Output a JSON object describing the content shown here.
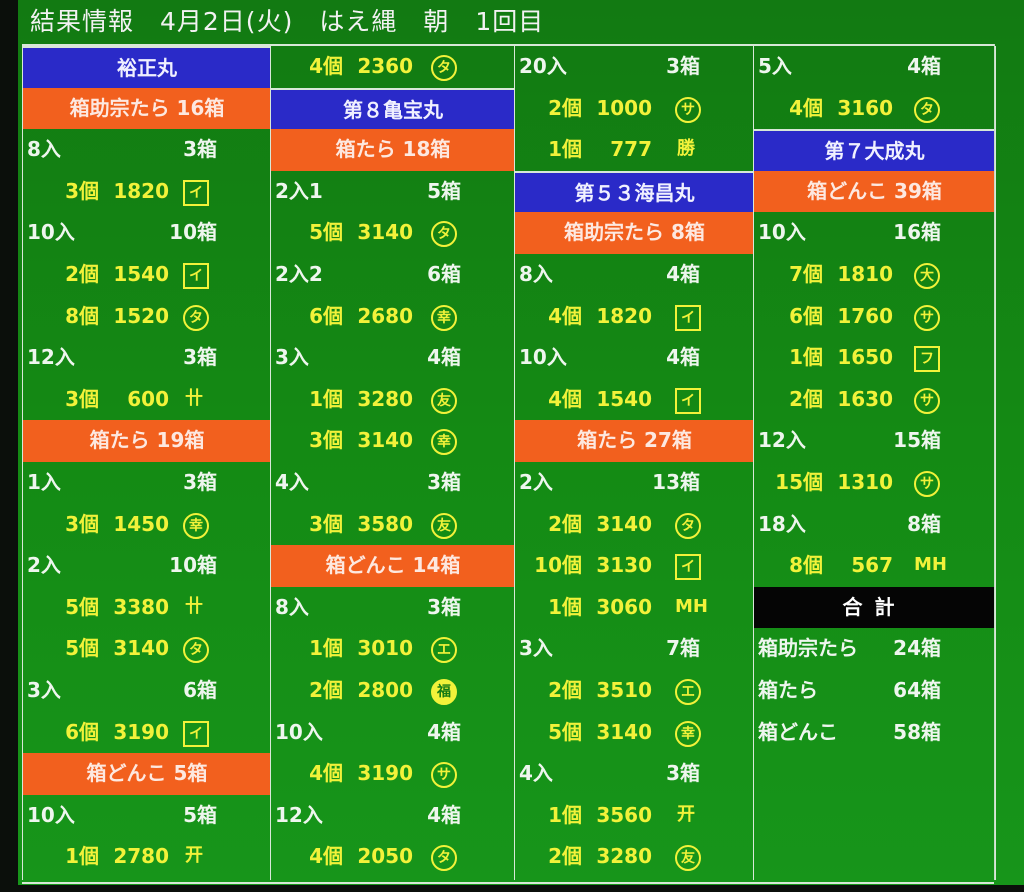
{
  "title": "結果情報　4月2日(火)　はえ縄　朝　1回目",
  "colors": {
    "background": "#148a14",
    "vessel_header": "#2a2ac8",
    "species_header": "#f2601e",
    "total_header": "#050505",
    "lot_text": "#f2f23a",
    "label_text": "#eef6ee"
  },
  "columns": [
    {
      "rows": [
        {
          "type": "header",
          "text": "裕正丸"
        },
        {
          "type": "section",
          "text": "箱助宗たら 16箱"
        },
        {
          "type": "size",
          "label": "8入",
          "boxes": "3箱"
        },
        {
          "type": "lot",
          "count": "3個",
          "price": "1820",
          "mark": "イ",
          "mark_style": "square"
        },
        {
          "type": "size",
          "label": "10入",
          "boxes": "10箱"
        },
        {
          "type": "lot",
          "count": "2個",
          "price": "1540",
          "mark": "イ",
          "mark_style": "square"
        },
        {
          "type": "lot",
          "count": "8個",
          "price": "1520",
          "mark": "タ",
          "mark_style": "circle"
        },
        {
          "type": "size",
          "label": "12入",
          "boxes": "3箱"
        },
        {
          "type": "lot",
          "count": "3個",
          "price": "600",
          "mark": "卄",
          "mark_style": "plain"
        },
        {
          "type": "section",
          "text": "箱たら 19箱"
        },
        {
          "type": "size",
          "label": "1入",
          "boxes": "3箱"
        },
        {
          "type": "lot",
          "count": "3個",
          "price": "1450",
          "mark": "幸",
          "mark_style": "circle"
        },
        {
          "type": "size",
          "label": "2入",
          "boxes": "10箱"
        },
        {
          "type": "lot",
          "count": "5個",
          "price": "3380",
          "mark": "卄",
          "mark_style": "plain"
        },
        {
          "type": "lot",
          "count": "5個",
          "price": "3140",
          "mark": "タ",
          "mark_style": "circle"
        },
        {
          "type": "size",
          "label": "3入",
          "boxes": "6箱"
        },
        {
          "type": "lot",
          "count": "6個",
          "price": "3190",
          "mark": "イ",
          "mark_style": "square"
        },
        {
          "type": "section",
          "text": "箱どんこ 5箱"
        },
        {
          "type": "size",
          "label": "10入",
          "boxes": "5箱"
        },
        {
          "type": "lot",
          "count": "1個",
          "price": "2780",
          "mark": "开",
          "mark_style": "plain"
        }
      ]
    },
    {
      "rows": [
        {
          "type": "lot",
          "count": "4個",
          "price": "2360",
          "mark": "タ",
          "mark_style": "circle"
        },
        {
          "type": "header",
          "text": "第８亀宝丸"
        },
        {
          "type": "section",
          "text": "箱たら 18箱"
        },
        {
          "type": "size",
          "label": "2入1",
          "boxes": "5箱"
        },
        {
          "type": "lot",
          "count": "5個",
          "price": "3140",
          "mark": "タ",
          "mark_style": "circle"
        },
        {
          "type": "size",
          "label": "2入2",
          "boxes": "6箱"
        },
        {
          "type": "lot",
          "count": "6個",
          "price": "2680",
          "mark": "幸",
          "mark_style": "circle"
        },
        {
          "type": "size",
          "label": "3入",
          "boxes": "4箱"
        },
        {
          "type": "lot",
          "count": "1個",
          "price": "3280",
          "mark": "友",
          "mark_style": "circle"
        },
        {
          "type": "lot",
          "count": "3個",
          "price": "3140",
          "mark": "幸",
          "mark_style": "circle"
        },
        {
          "type": "size",
          "label": "4入",
          "boxes": "3箱"
        },
        {
          "type": "lot",
          "count": "3個",
          "price": "3580",
          "mark": "友",
          "mark_style": "circle"
        },
        {
          "type": "section",
          "text": "箱どんこ 14箱"
        },
        {
          "type": "size",
          "label": "8入",
          "boxes": "3箱"
        },
        {
          "type": "lot",
          "count": "1個",
          "price": "3010",
          "mark": "エ",
          "mark_style": "circle"
        },
        {
          "type": "lot",
          "count": "2個",
          "price": "2800",
          "mark": "福",
          "mark_style": "filled"
        },
        {
          "type": "size",
          "label": "10入",
          "boxes": "4箱"
        },
        {
          "type": "lot",
          "count": "4個",
          "price": "3190",
          "mark": "サ",
          "mark_style": "circle"
        },
        {
          "type": "size",
          "label": "12入",
          "boxes": "4箱"
        },
        {
          "type": "lot",
          "count": "4個",
          "price": "2050",
          "mark": "タ",
          "mark_style": "circle"
        }
      ]
    },
    {
      "rows": [
        {
          "type": "size",
          "label": "20入",
          "boxes": "3箱"
        },
        {
          "type": "lot",
          "count": "2個",
          "price": "1000",
          "mark": "サ",
          "mark_style": "circle"
        },
        {
          "type": "lot",
          "count": "1個",
          "price": "777",
          "mark": "勝",
          "mark_style": "plain"
        },
        {
          "type": "header",
          "text": "第５３海昌丸"
        },
        {
          "type": "section",
          "text": "箱助宗たら 8箱"
        },
        {
          "type": "size",
          "label": "8入",
          "boxes": "4箱"
        },
        {
          "type": "lot",
          "count": "4個",
          "price": "1820",
          "mark": "イ",
          "mark_style": "square"
        },
        {
          "type": "size",
          "label": "10入",
          "boxes": "4箱"
        },
        {
          "type": "lot",
          "count": "4個",
          "price": "1540",
          "mark": "イ",
          "mark_style": "square"
        },
        {
          "type": "section",
          "text": "箱たら 27箱"
        },
        {
          "type": "size",
          "label": "2入",
          "boxes": "13箱"
        },
        {
          "type": "lot",
          "count": "2個",
          "price": "3140",
          "mark": "タ",
          "mark_style": "circle"
        },
        {
          "type": "lot",
          "count": "10個",
          "price": "3130",
          "mark": "イ",
          "mark_style": "square"
        },
        {
          "type": "lot",
          "count": "1個",
          "price": "3060",
          "mark": "MH",
          "mark_style": "plain"
        },
        {
          "type": "size",
          "label": "3入",
          "boxes": "7箱"
        },
        {
          "type": "lot",
          "count": "2個",
          "price": "3510",
          "mark": "エ",
          "mark_style": "circle"
        },
        {
          "type": "lot",
          "count": "5個",
          "price": "3140",
          "mark": "幸",
          "mark_style": "circle"
        },
        {
          "type": "size",
          "label": "4入",
          "boxes": "3箱"
        },
        {
          "type": "lot",
          "count": "1個",
          "price": "3560",
          "mark": "开",
          "mark_style": "plain"
        },
        {
          "type": "lot",
          "count": "2個",
          "price": "3280",
          "mark": "友",
          "mark_style": "circle"
        }
      ]
    },
    {
      "rows": [
        {
          "type": "size",
          "label": "5入",
          "boxes": "4箱"
        },
        {
          "type": "lot",
          "count": "4個",
          "price": "3160",
          "mark": "タ",
          "mark_style": "circle"
        },
        {
          "type": "header",
          "text": "第７大成丸"
        },
        {
          "type": "section",
          "text": "箱どんこ 39箱"
        },
        {
          "type": "size",
          "label": "10入",
          "boxes": "16箱"
        },
        {
          "type": "lot",
          "count": "7個",
          "price": "1810",
          "mark": "大",
          "mark_style": "circle"
        },
        {
          "type": "lot",
          "count": "6個",
          "price": "1760",
          "mark": "サ",
          "mark_style": "circle"
        },
        {
          "type": "lot",
          "count": "1個",
          "price": "1650",
          "mark": "フ",
          "mark_style": "square"
        },
        {
          "type": "lot",
          "count": "2個",
          "price": "1630",
          "mark": "サ",
          "mark_style": "circle"
        },
        {
          "type": "size",
          "label": "12入",
          "boxes": "15箱"
        },
        {
          "type": "lot",
          "count": "15個",
          "price": "1310",
          "mark": "サ",
          "mark_style": "circle"
        },
        {
          "type": "size",
          "label": "18入",
          "boxes": "8箱"
        },
        {
          "type": "lot",
          "count": "8個",
          "price": "567",
          "mark": "MH",
          "mark_style": "plain"
        },
        {
          "type": "total",
          "text": "合計"
        },
        {
          "type": "sum",
          "label": "箱助宗たら",
          "boxes": "24箱"
        },
        {
          "type": "sum",
          "label": "箱たら",
          "boxes": "64箱"
        },
        {
          "type": "sum",
          "label": "箱どんこ",
          "boxes": "58箱"
        }
      ]
    }
  ]
}
